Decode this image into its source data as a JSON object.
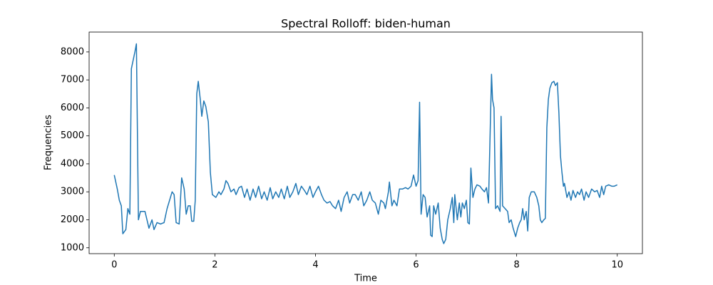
{
  "chart_data": {
    "type": "line",
    "title": "Spectral Rolloff: biden-human",
    "x_label": "Time",
    "y_label": "Frequencies",
    "xlim": [
      -0.5,
      10.5
    ],
    "ylim": [
      790,
      8710
    ],
    "xticks": [
      0,
      2,
      4,
      6,
      8,
      10
    ],
    "yticks": [
      1000,
      2000,
      3000,
      4000,
      5000,
      6000,
      7000,
      8000
    ],
    "grid": false,
    "series": [
      {
        "color": "#1f77b4",
        "x": [
          0.0,
          0.06,
          0.1,
          0.14,
          0.17,
          0.23,
          0.27,
          0.31,
          0.34,
          0.41,
          0.44,
          0.48,
          0.52,
          0.61,
          0.65,
          0.69,
          0.75,
          0.79,
          0.85,
          0.92,
          0.99,
          1.05,
          1.1,
          1.15,
          1.19,
          1.23,
          1.29,
          1.34,
          1.39,
          1.43,
          1.47,
          1.51,
          1.54,
          1.58,
          1.61,
          1.64,
          1.67,
          1.71,
          1.74,
          1.78,
          1.82,
          1.87,
          1.91,
          1.95,
          2.02,
          2.08,
          2.12,
          2.18,
          2.22,
          2.26,
          2.32,
          2.38,
          2.42,
          2.48,
          2.53,
          2.59,
          2.64,
          2.7,
          2.76,
          2.81,
          2.87,
          2.93,
          2.98,
          3.04,
          3.1,
          3.15,
          3.21,
          3.27,
          3.32,
          3.38,
          3.44,
          3.49,
          3.55,
          3.61,
          3.66,
          3.72,
          3.78,
          3.83,
          3.89,
          3.95,
          4.0,
          4.06,
          4.12,
          4.17,
          4.23,
          4.29,
          4.34,
          4.4,
          4.46,
          4.51,
          4.57,
          4.63,
          4.68,
          4.74,
          4.79,
          4.85,
          4.91,
          4.96,
          5.02,
          5.08,
          5.13,
          5.19,
          5.25,
          5.3,
          5.36,
          5.39,
          5.45,
          5.47,
          5.52,
          5.56,
          5.62,
          5.67,
          5.73,
          5.79,
          5.84,
          5.9,
          5.95,
          6.0,
          6.04,
          6.07,
          6.1,
          6.14,
          6.18,
          6.22,
          6.27,
          6.29,
          6.32,
          6.35,
          6.39,
          6.44,
          6.48,
          6.52,
          6.55,
          6.59,
          6.63,
          6.68,
          6.72,
          6.75,
          6.77,
          6.82,
          6.86,
          6.89,
          6.92,
          6.96,
          7.0,
          7.03,
          7.06,
          7.09,
          7.13,
          7.17,
          7.21,
          7.27,
          7.31,
          7.36,
          7.4,
          7.44,
          7.5,
          7.52,
          7.55,
          7.58,
          7.62,
          7.67,
          7.69,
          7.72,
          7.77,
          7.82,
          7.85,
          7.89,
          7.93,
          7.98,
          8.02,
          8.06,
          8.09,
          8.12,
          8.15,
          8.19,
          8.22,
          8.25,
          8.29,
          8.35,
          8.4,
          8.44,
          8.47,
          8.5,
          8.54,
          8.57,
          8.6,
          8.63,
          8.66,
          8.7,
          8.74,
          8.77,
          8.81,
          8.84,
          8.87,
          8.9,
          8.93,
          8.95,
          9.0,
          9.04,
          9.08,
          9.12,
          9.17,
          9.21,
          9.25,
          9.29,
          9.34,
          9.38,
          9.43,
          9.49,
          9.55,
          9.6,
          9.65,
          9.69,
          9.73,
          9.77,
          9.83,
          9.89,
          9.94,
          10.0
        ],
        "values": [
          3600,
          3100,
          2700,
          2500,
          1500,
          1650,
          2400,
          2200,
          7400,
          8000,
          8290,
          2000,
          2300,
          2300,
          2000,
          1700,
          2000,
          1650,
          1900,
          1850,
          1900,
          2400,
          2700,
          3000,
          2900,
          1900,
          1850,
          3500,
          3100,
          2200,
          2500,
          2500,
          1950,
          1950,
          2700,
          6500,
          6950,
          6300,
          5700,
          6250,
          6050,
          5500,
          3700,
          2900,
          2800,
          3000,
          2900,
          3100,
          3400,
          3300,
          3000,
          3100,
          2900,
          3150,
          3200,
          2800,
          3100,
          2700,
          3100,
          2800,
          3200,
          2750,
          3000,
          2700,
          3150,
          2750,
          3000,
          2800,
          3100,
          2750,
          3200,
          2800,
          3000,
          3300,
          2900,
          3200,
          3050,
          2900,
          3200,
          2800,
          3000,
          3200,
          2900,
          2700,
          2600,
          2650,
          2500,
          2400,
          2700,
          2300,
          2800,
          3000,
          2600,
          2900,
          2900,
          2700,
          3000,
          2500,
          2700,
          3000,
          2700,
          2600,
          2200,
          2700,
          2600,
          2400,
          3000,
          3350,
          2500,
          2700,
          2500,
          3100,
          3100,
          3150,
          3100,
          3200,
          3600,
          3200,
          3400,
          6200,
          2200,
          2900,
          2800,
          2100,
          2500,
          1450,
          1400,
          2500,
          2200,
          2600,
          1700,
          1300,
          1150,
          1300,
          2000,
          2400,
          2800,
          1900,
          2900,
          2000,
          2600,
          2100,
          2600,
          2400,
          2700,
          1900,
          1850,
          3850,
          2800,
          3100,
          3250,
          3200,
          3100,
          3000,
          3150,
          2600,
          7200,
          6300,
          6000,
          2400,
          2500,
          2300,
          5700,
          2500,
          2400,
          2300,
          1900,
          2000,
          1700,
          1400,
          1700,
          1900,
          2000,
          2400,
          2000,
          2300,
          1600,
          2800,
          3000,
          3000,
          2800,
          2500,
          2000,
          1900,
          2000,
          2050,
          5300,
          6300,
          6700,
          6900,
          6950,
          6800,
          6900,
          5800,
          4300,
          3700,
          3200,
          3300,
          2800,
          3000,
          2700,
          3050,
          2800,
          3000,
          2900,
          3100,
          2700,
          3000,
          2800,
          3100,
          3000,
          3050,
          2800,
          3200,
          2900,
          3200,
          3250,
          3200,
          3200,
          3250
        ]
      }
    ]
  }
}
